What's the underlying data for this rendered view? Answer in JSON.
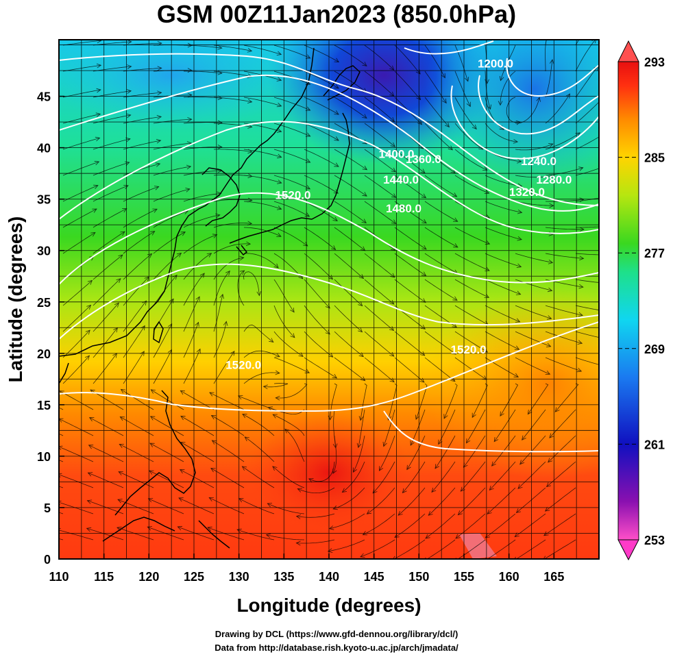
{
  "title": "GSM 00Z11Jan2023 (850.0hPa)",
  "axes": {
    "xlabel": "Longitude (degrees)",
    "ylabel": "Latitude  (degrees)",
    "xticks": [
      110,
      115,
      120,
      125,
      130,
      135,
      140,
      145,
      150,
      155,
      160,
      165
    ],
    "yticks": [
      0,
      5,
      10,
      15,
      20,
      25,
      30,
      35,
      40,
      45
    ],
    "xrange": [
      110,
      170
    ],
    "yrange": [
      0,
      50.5
    ]
  },
  "colorbar": {
    "ticks": [
      293,
      285,
      277,
      269,
      261,
      253
    ],
    "range": [
      253,
      293
    ],
    "colors": [
      "#ff4fc8",
      "#7a0aa8",
      "#1010c0",
      "#1a7af0",
      "#10d6f0",
      "#1ee08a",
      "#3ad820",
      "#b6e610",
      "#ffd400",
      "#ff8a00",
      "#ff3010",
      "#e81010"
    ]
  },
  "contours": {
    "color": "#ffffff",
    "labels": [
      {
        "text": "1200.0",
        "lon": 158.5,
        "lat": 47.8
      },
      {
        "text": "1240.0",
        "lon": 163.3,
        "lat": 38.3
      },
      {
        "text": "1280.0",
        "lon": 165.0,
        "lat": 36.5
      },
      {
        "text": "1320.0",
        "lon": 162.0,
        "lat": 35.3
      },
      {
        "text": "1360.0",
        "lon": 150.5,
        "lat": 38.5
      },
      {
        "text": "1400.0",
        "lon": 147.5,
        "lat": 39.0
      },
      {
        "text": "1440.0",
        "lon": 148.0,
        "lat": 36.5
      },
      {
        "text": "1480.0",
        "lon": 148.3,
        "lat": 33.7
      },
      {
        "text": "1520.0",
        "lon": 136.0,
        "lat": 35.0
      },
      {
        "text": "1520.0",
        "lon": 130.5,
        "lat": 18.5
      },
      {
        "text": "1520.0",
        "lon": 155.5,
        "lat": 20.0
      }
    ]
  },
  "credit": {
    "line1": "Drawing by DCL (https://www.gfd-dennou.org/library/dcl/)",
    "line2": "Data from http://database.rish.kyoto-u.ac.jp/arch/jmadata/"
  }
}
